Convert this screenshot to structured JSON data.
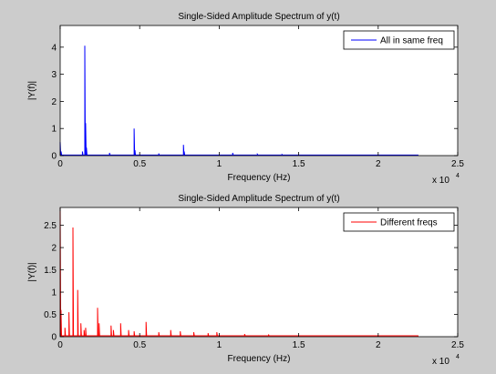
{
  "chart_data": [
    {
      "type": "line",
      "title": "Single-Sided Amplitude Spectrum of y(t)",
      "xlabel": "Frequency (Hz)",
      "ylabel": "|Y(f)|",
      "x_exponent_label": "x 10",
      "x_exponent_power": "4",
      "xlim": [
        0,
        25000
      ],
      "ylim": [
        0,
        4.8
      ],
      "xticks": [
        0,
        5000,
        10000,
        15000,
        20000,
        25000
      ],
      "xtick_labels": [
        "0",
        "0.5",
        "1",
        "1.5",
        "2",
        "2.5"
      ],
      "yticks": [
        0,
        1,
        2,
        3,
        4
      ],
      "ytick_labels": [
        "0",
        "1",
        "2",
        "3",
        "4"
      ],
      "grid": false,
      "legend_position": "top-right",
      "series": [
        {
          "name": "All in same freq",
          "color": "#0000ff",
          "noise_floor": 0.02,
          "x_end": 22500,
          "peaks": [
            {
              "x": 0,
              "y": 0.5
            },
            {
              "x": 60,
              "y": 0.15
            },
            {
              "x": 1400,
              "y": 0.15
            },
            {
              "x": 1550,
              "y": 4.05
            },
            {
              "x": 1600,
              "y": 1.2
            },
            {
              "x": 1650,
              "y": 0.3
            },
            {
              "x": 3100,
              "y": 0.1
            },
            {
              "x": 4650,
              "y": 1.0
            },
            {
              "x": 4700,
              "y": 0.2
            },
            {
              "x": 6200,
              "y": 0.08
            },
            {
              "x": 7750,
              "y": 0.4
            },
            {
              "x": 7800,
              "y": 0.15
            },
            {
              "x": 10850,
              "y": 0.1
            },
            {
              "x": 12400,
              "y": 0.05
            },
            {
              "x": 13950,
              "y": 0.04
            }
          ]
        }
      ]
    },
    {
      "type": "line",
      "title": "Single-Sided Amplitude Spectrum of y(t)",
      "xlabel": "Frequency (Hz)",
      "ylabel": "|Y(f)|",
      "x_exponent_label": "x 10",
      "x_exponent_power": "4",
      "xlim": [
        0,
        25000
      ],
      "ylim": [
        0,
        2.9
      ],
      "xticks": [
        0,
        5000,
        10000,
        15000,
        20000,
        25000
      ],
      "xtick_labels": [
        "0",
        "0.5",
        "1",
        "1.5",
        "2",
        "2.5"
      ],
      "yticks": [
        0,
        0.5,
        1,
        1.5,
        2,
        2.5
      ],
      "ytick_labels": [
        "0",
        "0.5",
        "1",
        "1.5",
        "2",
        "2.5"
      ],
      "grid": false,
      "legend_position": "top-right",
      "series": [
        {
          "name": "Different freqs",
          "color": "#ff0000",
          "noise_floor": 0.02,
          "x_end": 22500,
          "peaks": [
            {
              "x": 0,
              "y": 2.9
            },
            {
              "x": 50,
              "y": 0.6
            },
            {
              "x": 300,
              "y": 0.2
            },
            {
              "x": 550,
              "y": 0.55
            },
            {
              "x": 800,
              "y": 2.45
            },
            {
              "x": 1100,
              "y": 1.05
            },
            {
              "x": 1300,
              "y": 0.3
            },
            {
              "x": 1500,
              "y": 0.15
            },
            {
              "x": 1600,
              "y": 0.2
            },
            {
              "x": 2350,
              "y": 0.65
            },
            {
              "x": 2450,
              "y": 0.3
            },
            {
              "x": 3200,
              "y": 0.25
            },
            {
              "x": 3350,
              "y": 0.15
            },
            {
              "x": 3800,
              "y": 0.3
            },
            {
              "x": 4300,
              "y": 0.15
            },
            {
              "x": 4650,
              "y": 0.12
            },
            {
              "x": 5400,
              "y": 0.33
            },
            {
              "x": 6200,
              "y": 0.1
            },
            {
              "x": 6950,
              "y": 0.15
            },
            {
              "x": 7550,
              "y": 0.12
            },
            {
              "x": 8400,
              "y": 0.1
            },
            {
              "x": 9300,
              "y": 0.08
            },
            {
              "x": 9850,
              "y": 0.1
            },
            {
              "x": 11600,
              "y": 0.06
            },
            {
              "x": 13100,
              "y": 0.05
            }
          ]
        }
      ]
    }
  ]
}
